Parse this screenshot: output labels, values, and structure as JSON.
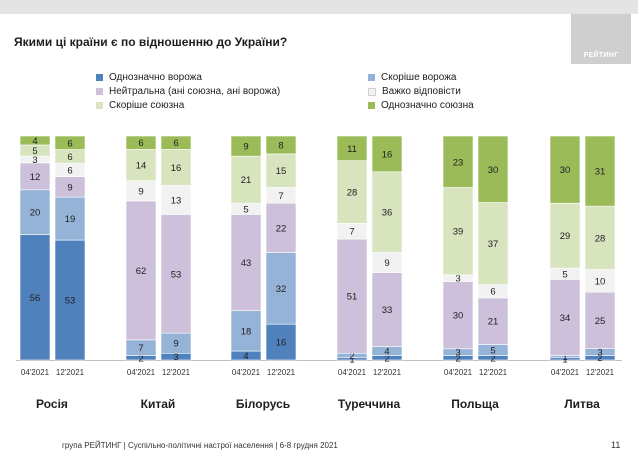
{
  "header": {
    "title": "Якими ці країни є по відношенню до України?",
    "logo_text": "РЕЙТИНГ"
  },
  "colors": {
    "definitely_hostile": "#4f81bd",
    "rather_hostile": "#95b3d7",
    "neutral": "#ccc0da",
    "hard_to_say": "#f2f2f2",
    "rather_allied": "#d7e4bd",
    "definitely_allied": "#9bbb59"
  },
  "chart_data": {
    "type": "bar",
    "stacked": true,
    "title": "Якими ці країни є по відношенню до України?",
    "ylim": [
      0,
      100
    ],
    "legend": [
      {
        "key": "definitely_hostile",
        "label": "Однозначно ворожа"
      },
      {
        "key": "rather_hostile",
        "label": "Скоріше ворожа"
      },
      {
        "key": "neutral",
        "label": "Нейтральна (ані союзна, ані ворожа)"
      },
      {
        "key": "hard_to_say",
        "label": "Важко відповісти"
      },
      {
        "key": "rather_allied",
        "label": "Скоріше союзна"
      },
      {
        "key": "definitely_allied",
        "label": "Однозначно союзна"
      }
    ],
    "periods": [
      "04'2021",
      "12'2021"
    ],
    "groups": [
      {
        "name": "Росія",
        "bars": [
          {
            "definitely_hostile": 56,
            "rather_hostile": 20,
            "neutral": 12,
            "hard_to_say": 3,
            "rather_allied": 5,
            "definitely_allied": 4
          },
          {
            "definitely_hostile": 53,
            "rather_hostile": 19,
            "neutral": 9,
            "hard_to_say": 6,
            "rather_allied": 6,
            "definitely_allied": 6
          }
        ]
      },
      {
        "name": "Китай",
        "bars": [
          {
            "definitely_hostile": 2,
            "rather_hostile": 7,
            "neutral": 62,
            "hard_to_say": 9,
            "rather_allied": 14,
            "definitely_allied": 6
          },
          {
            "definitely_hostile": 3,
            "rather_hostile": 9,
            "neutral": 53,
            "hard_to_say": 13,
            "rather_allied": 16,
            "definitely_allied": 6
          }
        ]
      },
      {
        "name": "Білорусь",
        "bars": [
          {
            "definitely_hostile": 4,
            "rather_hostile": 18,
            "neutral": 43,
            "hard_to_say": 5,
            "rather_allied": 21,
            "definitely_allied": 9
          },
          {
            "definitely_hostile": 16,
            "rather_hostile": 32,
            "neutral": 22,
            "hard_to_say": 7,
            "rather_allied": 15,
            "definitely_allied": 8
          }
        ]
      },
      {
        "name": "Туреччина",
        "bars": [
          {
            "definitely_hostile": 1,
            "rather_hostile": 2,
            "neutral": 51,
            "hard_to_say": 7,
            "rather_allied": 28,
            "definitely_allied": 11
          },
          {
            "definitely_hostile": 2,
            "rather_hostile": 4,
            "neutral": 33,
            "hard_to_say": 9,
            "rather_allied": 36,
            "definitely_allied": 16
          }
        ]
      },
      {
        "name": "Польща",
        "bars": [
          {
            "definitely_hostile": 2,
            "rather_hostile": 3,
            "neutral": 30,
            "hard_to_say": 3,
            "rather_allied": 39,
            "definitely_allied": 23
          },
          {
            "definitely_hostile": 2,
            "rather_hostile": 5,
            "neutral": 21,
            "hard_to_say": 6,
            "rather_allied": 37,
            "definitely_allied": 30
          }
        ]
      },
      {
        "name": "Литва",
        "bars": [
          {
            "definitely_hostile": 1,
            "rather_hostile": 1,
            "neutral": 34,
            "hard_to_say": 5,
            "rather_allied": 29,
            "definitely_allied": 30
          },
          {
            "definitely_hostile": 2,
            "rather_hostile": 3,
            "neutral": 25,
            "hard_to_say": 10,
            "rather_allied": 28,
            "definitely_allied": 31
          }
        ]
      }
    ]
  },
  "footer": {
    "source": "група РЕЙТИНГ | Суспільно-політичні настрої населення  | 6-8 грудня 2021",
    "page_number": "11"
  }
}
